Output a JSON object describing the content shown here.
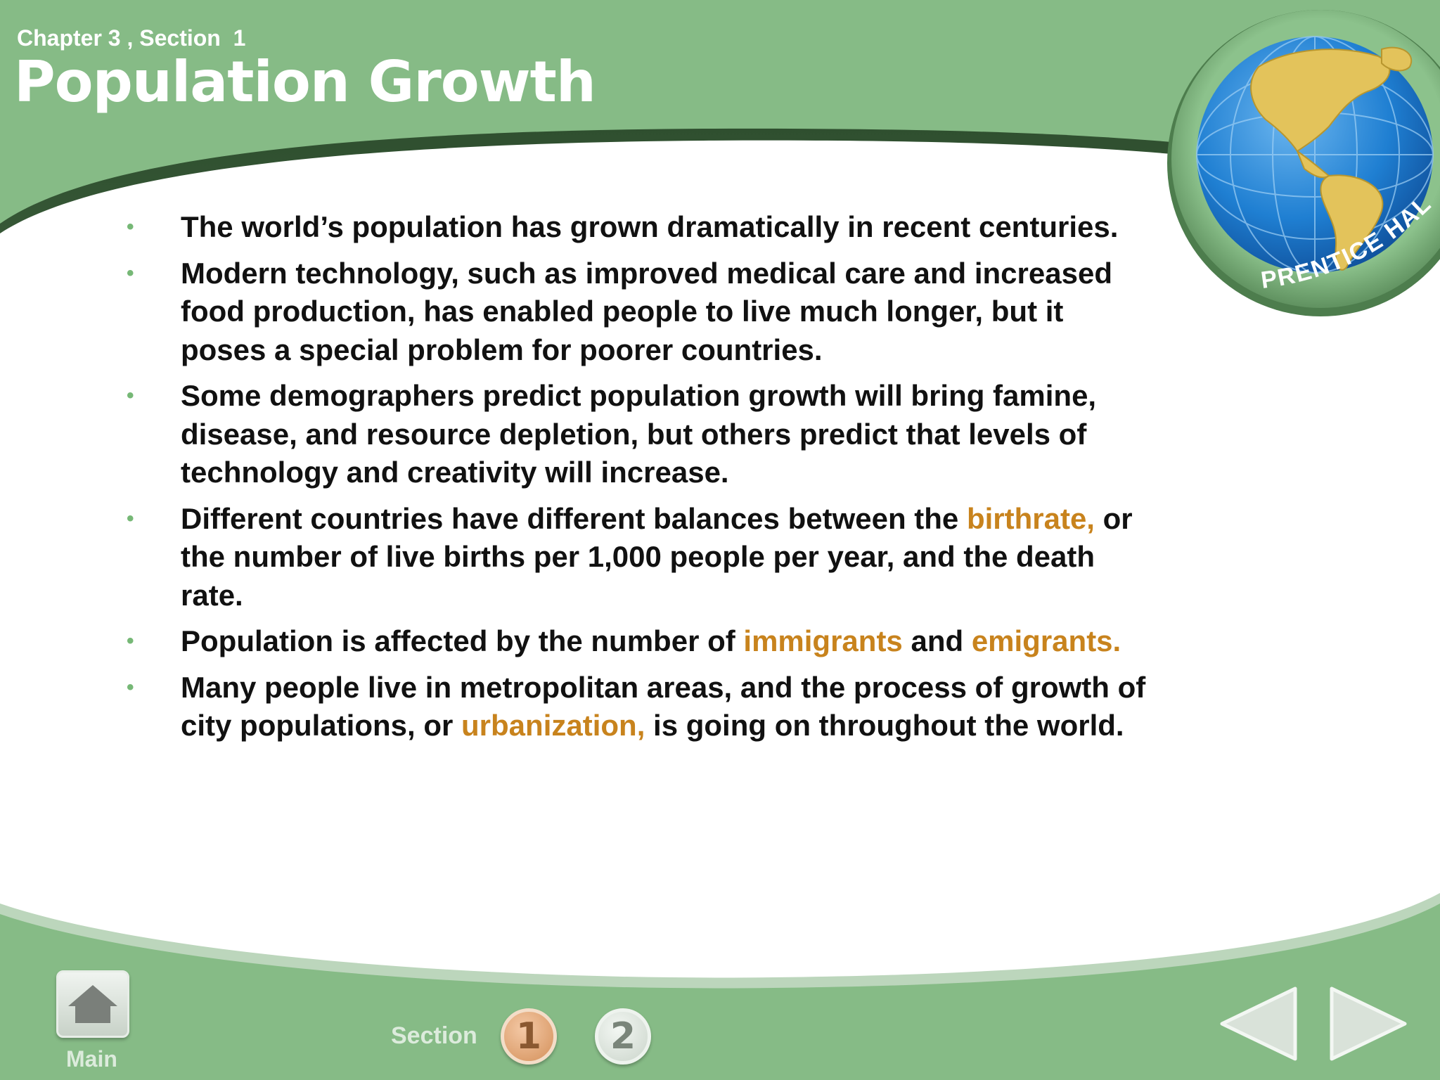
{
  "header": {
    "chapter": "Chapter 3 , Section  1",
    "title": "Population Growth"
  },
  "logo": {
    "text": "PRENTICE HALL"
  },
  "bullets": [
    {
      "segments": [
        {
          "text": "The world’s population has grown dramatically in recent centuries."
        }
      ]
    },
    {
      "segments": [
        {
          "text": "Modern technology, such as improved medical care and increased food production, has enabled people to live much longer, but it poses a special problem for poorer countries."
        }
      ]
    },
    {
      "segments": [
        {
          "text": "Some demographers predict population growth will bring famine, disease, and resource depletion, but others predict that levels of technology and creativity will increase."
        }
      ]
    },
    {
      "segments": [
        {
          "text": "Different countries have different balances between the "
        },
        {
          "text": "birthrate,",
          "term": true
        },
        {
          "text": " or the number of live births per 1,000 people per year, and the death rate."
        }
      ]
    },
    {
      "segments": [
        {
          "text": "Population is affected by the number of "
        },
        {
          "text": "immigrants",
          "term": true
        },
        {
          "text": " and "
        },
        {
          "text": "emigrants.",
          "term": true
        }
      ]
    },
    {
      "segments": [
        {
          "text": "Many people live in metropolitan areas, and the process of growth of city populations, or "
        },
        {
          "text": "urbanization,",
          "term": true
        },
        {
          "text": " is going on throughout the world."
        }
      ]
    }
  ],
  "footer": {
    "main_label": "Main",
    "section_label": "Section",
    "section_buttons": [
      "1",
      "2"
    ],
    "active_section": "1"
  },
  "icons": {
    "home": "home-icon",
    "prev": "triangle-left-icon",
    "next": "triangle-right-icon",
    "bullet": "bullet-dot-icon",
    "globe": "globe-icon"
  },
  "colors": {
    "green": "#86bb86",
    "term": "#c8831d",
    "text": "#111111",
    "bullet": "#76b876"
  }
}
